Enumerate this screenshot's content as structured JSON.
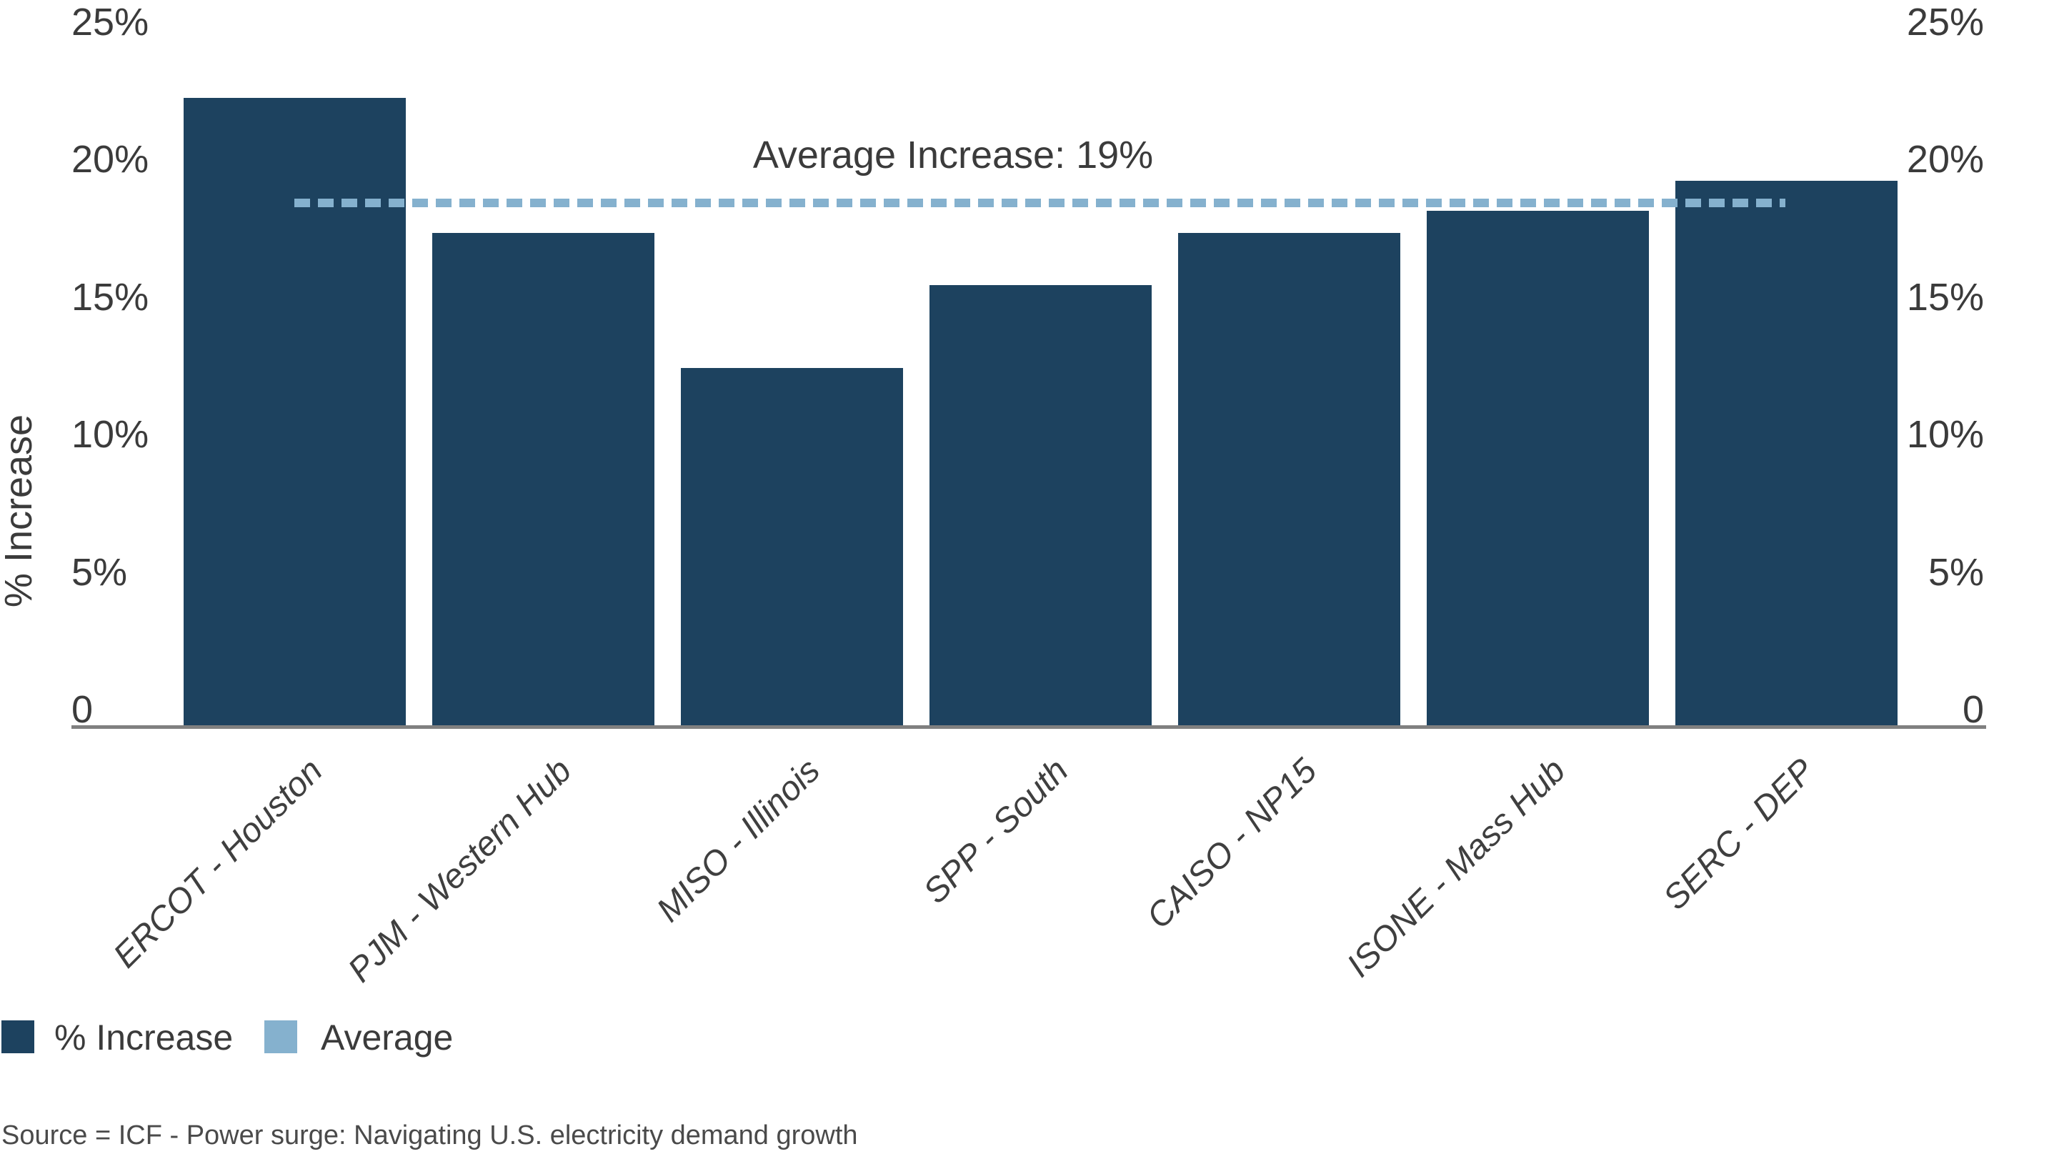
{
  "chart_data": {
    "type": "bar",
    "title": "",
    "xlabel": "",
    "ylabel": "% Increase",
    "categories": [
      "ERCOT - Houston",
      "PJM - Western Hub",
      "MISO - Illinois",
      "SPP - South",
      "CAISO - NP15",
      "ISONE - Mass Hub",
      "SERC - DEP"
    ],
    "values": [
      22.8,
      17.9,
      13,
      16,
      17.9,
      18.7,
      19.8
    ],
    "bar_color": "#1D425F",
    "average_line": {
      "value": 19,
      "label": "Average Increase: 19%",
      "color": "#85B1CE",
      "style": "dashed"
    },
    "y_ticks": [
      {
        "label": "25%",
        "value": 25
      },
      {
        "label": "20%",
        "value": 20
      },
      {
        "label": "15%",
        "value": 15
      },
      {
        "label": "10%",
        "value": 10
      },
      {
        "label": "5%",
        "value": 5
      },
      {
        "label": "0",
        "value": 0
      }
    ],
    "ylim": [
      0,
      25
    ],
    "grid": false,
    "dual_axis_labels": true,
    "legend_position": "bottom-left",
    "legend": [
      {
        "label": "% Increase",
        "color": "#1D425F"
      },
      {
        "label": "Average",
        "color": "#85B1CE"
      }
    ],
    "source": "Source = ICF - Power surge: Navigating U.S. electricity demand growth"
  },
  "colors": {
    "background": "#FFFFFF",
    "text": "#3B3B3B",
    "axis_line": "#808080",
    "category_text": "#3F3F3F",
    "source_text": "#4A4A4A"
  }
}
